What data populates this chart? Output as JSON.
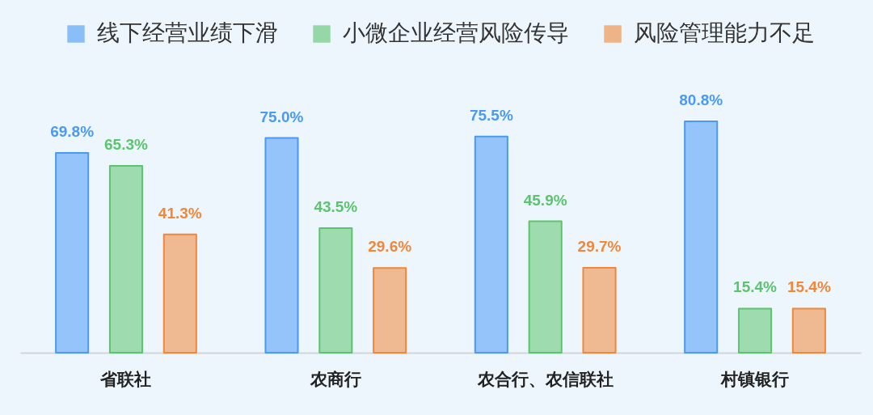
{
  "chart_data": {
    "type": "bar",
    "categories": [
      "省联社",
      "农商行",
      "农合行、农信联社",
      "村镇银行"
    ],
    "series": [
      {
        "name": "线下经营业绩下滑",
        "color": "#4a9af5",
        "values": [
          69.8,
          75.0,
          75.5,
          80.8
        ],
        "value_labels": [
          "69.8%",
          "75.0%",
          "75.5%",
          "80.8%"
        ]
      },
      {
        "name": "小微企业经营风险传导",
        "color": "#5cc46e",
        "values": [
          65.3,
          43.5,
          45.9,
          15.4
        ],
        "value_labels": [
          "65.3%",
          "43.5%",
          "45.9%",
          "15.4%"
        ]
      },
      {
        "name": "风险管理能力不足",
        "color": "#f0873a",
        "values": [
          41.3,
          29.6,
          29.7,
          15.4
        ],
        "value_labels": [
          "41.3%",
          "29.6%",
          "29.7%",
          "15.4%"
        ]
      }
    ],
    "legend": "top"
  }
}
